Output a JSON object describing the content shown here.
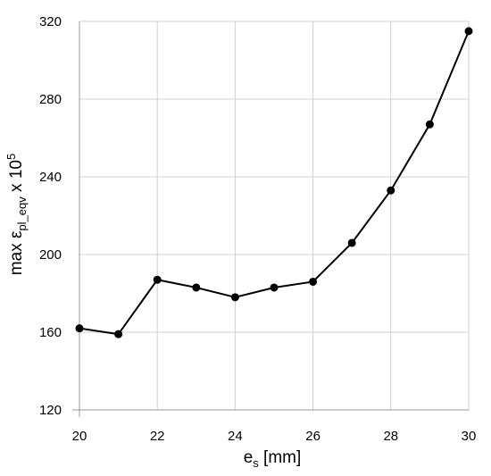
{
  "chart_data": {
    "type": "line",
    "x_label_parts": [
      "e",
      "s",
      " [mm]"
    ],
    "y_label_parts": [
      "max ε",
      "pl_eqv",
      " x 10",
      "5"
    ],
    "x": [
      20,
      21,
      22,
      23,
      24,
      25,
      26,
      27,
      28,
      29,
      30
    ],
    "series": [
      {
        "color": "#000000",
        "values": [
          162,
          159,
          187,
          183,
          178,
          183,
          186,
          206,
          233,
          267,
          315
        ]
      }
    ],
    "xlim": [
      20,
      30
    ],
    "xticks": [
      20,
      22,
      24,
      26,
      28,
      30
    ],
    "ylim": [
      120,
      320
    ],
    "yticks": [
      120,
      160,
      200,
      240,
      280,
      320
    ],
    "grid": true
  }
}
